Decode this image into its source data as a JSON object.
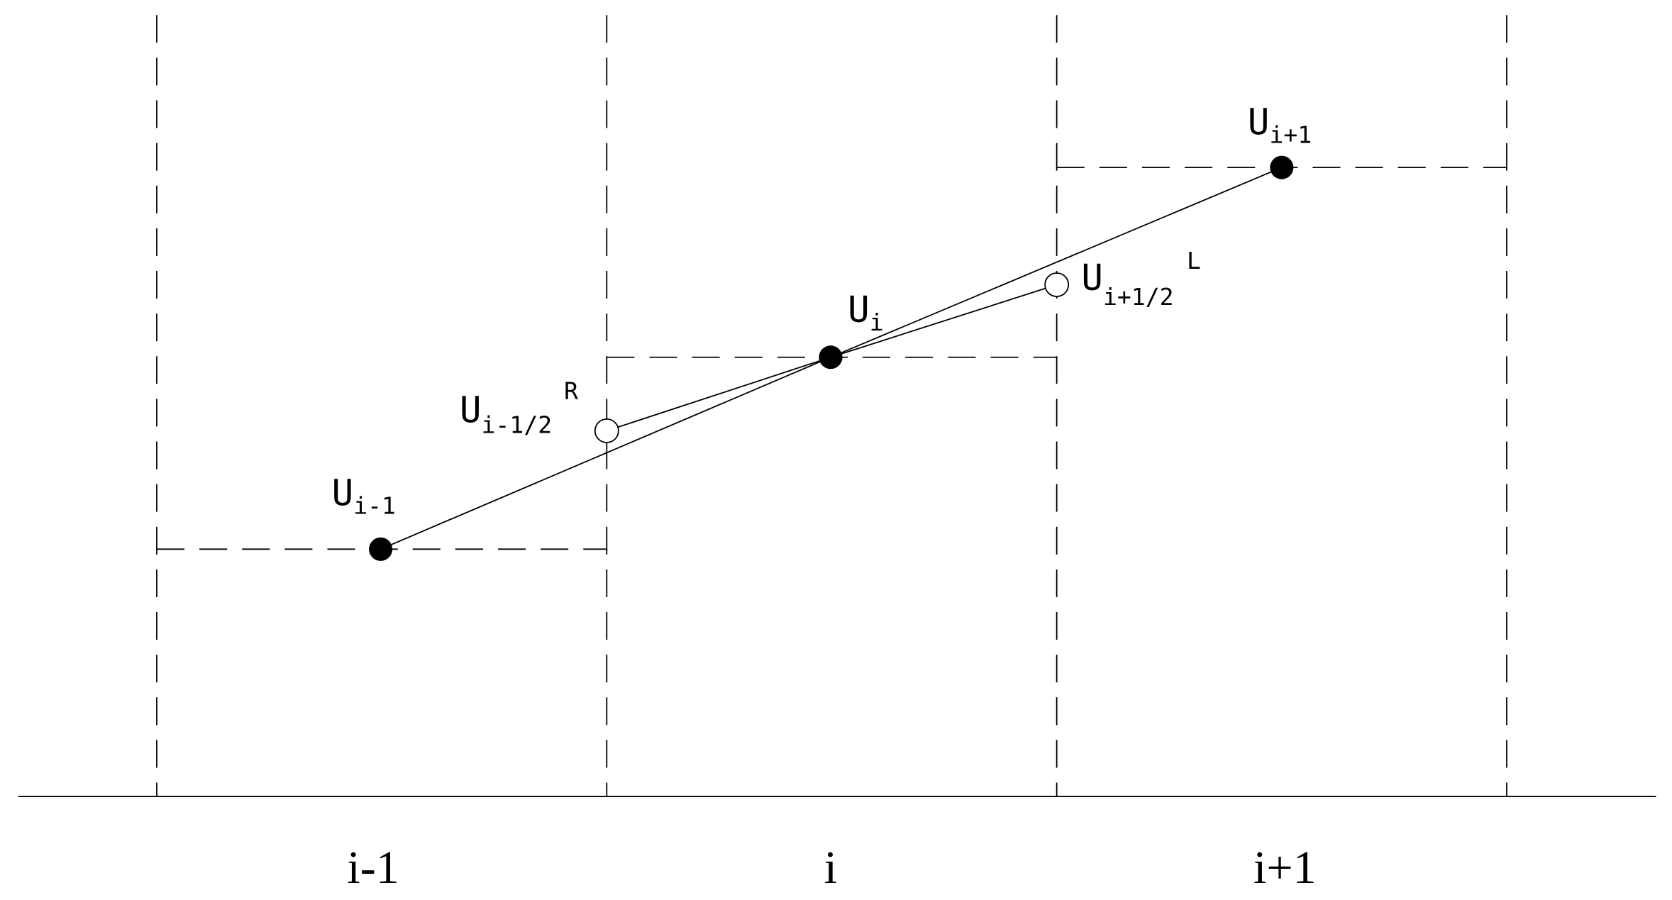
{
  "cells": [
    {
      "label": "i-1"
    },
    {
      "label": "i"
    },
    {
      "label": "i+1"
    }
  ],
  "points": [
    {
      "symbol": "U",
      "subscript": "i-1"
    },
    {
      "symbol": "U",
      "subscript": "i"
    },
    {
      "symbol": "U",
      "subscript": "i+1"
    }
  ],
  "interface_values": [
    {
      "symbol": "U",
      "subscript": "i-1/2",
      "superscript": "R"
    },
    {
      "symbol": "U",
      "subscript": "i+1/2",
      "superscript": "L"
    }
  ]
}
